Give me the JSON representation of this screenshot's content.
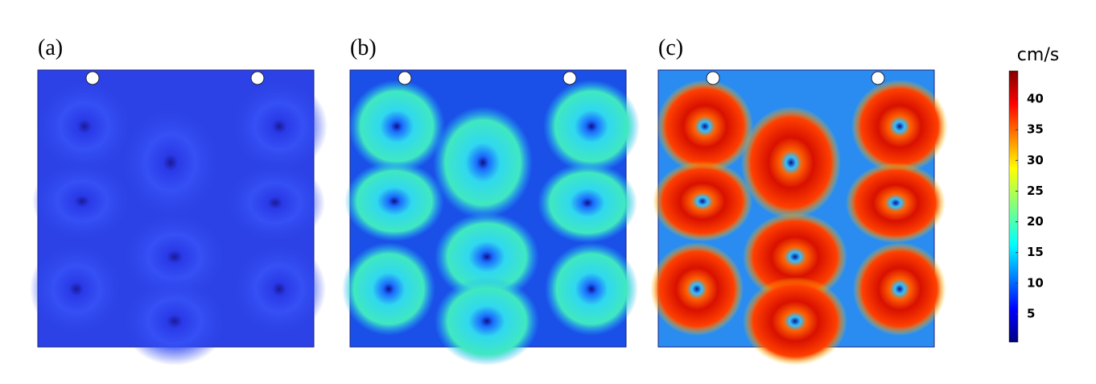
{
  "panels": [
    {
      "label": "(a)"
    },
    {
      "label": "(b)"
    },
    {
      "label": "(c)"
    }
  ],
  "colorbar": {
    "title": "cm/s",
    "range": [
      0.4,
      44.6
    ],
    "ticks": [
      5,
      10,
      15,
      20,
      25,
      30,
      35,
      40
    ]
  }
}
